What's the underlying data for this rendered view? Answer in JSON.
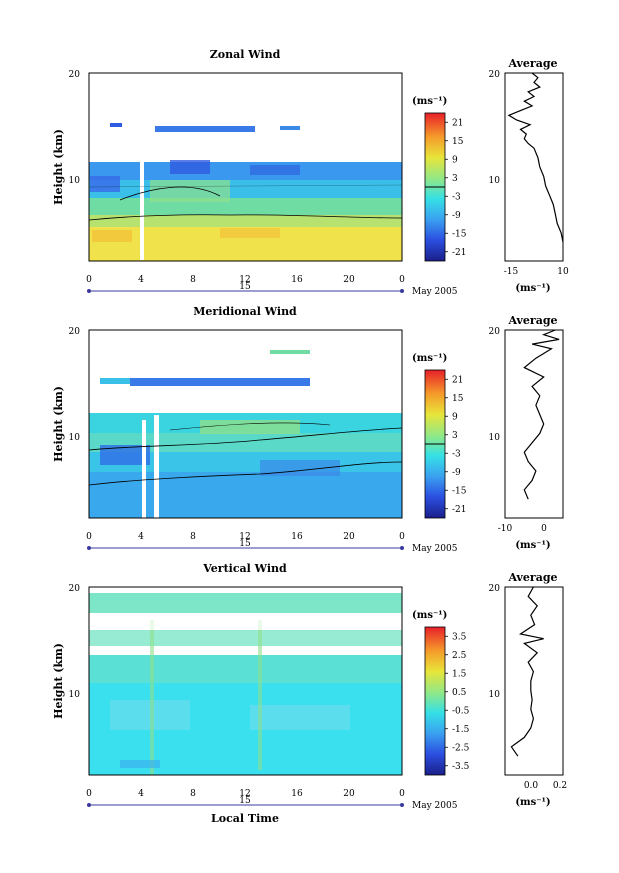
{
  "chart_data": [
    {
      "type": "heatmap",
      "title": "Zonal Wind",
      "ylabel": "Height (km)",
      "yticks": [
        10,
        20
      ],
      "xticks": [
        "0",
        "4",
        "8",
        "12",
        "16",
        "20",
        "0"
      ],
      "day_label": "15",
      "month_label": "May 2005",
      "colorbar": {
        "unit": "(ms⁻¹)",
        "ticks": [
          "21",
          "15",
          "9",
          "3",
          "-3",
          "-9",
          "-15",
          "-21"
        ],
        "range": [
          -24,
          24
        ]
      },
      "average": {
        "title": "Average",
        "xticks": [
          "-15",
          "10"
        ],
        "xlim": [
          -20,
          10
        ],
        "unit": "(ms⁻¹)",
        "profile": [
          [
            10,
            2
          ],
          [
            9,
            3
          ],
          [
            7,
            4
          ],
          [
            6,
            5
          ],
          [
            5,
            6
          ],
          [
            4,
            6.5
          ],
          [
            3,
            7
          ],
          [
            2,
            7.5
          ],
          [
            1,
            8
          ],
          [
            0,
            9
          ],
          [
            -2,
            10
          ],
          [
            -3,
            11
          ],
          [
            -5,
            12
          ],
          [
            -8,
            12.5
          ],
          [
            -10,
            13
          ],
          [
            -9,
            13.5
          ],
          [
            -12,
            14
          ],
          [
            -7,
            14.5
          ],
          [
            -14,
            15
          ],
          [
            -18,
            15.5
          ],
          [
            -12,
            16
          ],
          [
            -6,
            16.5
          ],
          [
            -10,
            17
          ],
          [
            -5,
            17.5
          ],
          [
            -8,
            18
          ],
          [
            -2,
            18.5
          ],
          [
            -5,
            19
          ],
          [
            -3,
            19.5
          ],
          [
            -6,
            20
          ]
        ]
      }
    },
    {
      "type": "heatmap",
      "title": "Meridional Wind",
      "ylabel": "Height (km)",
      "yticks": [
        10,
        20
      ],
      "xticks": [
        "0",
        "4",
        "8",
        "12",
        "16",
        "20",
        "0"
      ],
      "day_label": "15",
      "month_label": "May 2005",
      "colorbar": {
        "unit": "(ms⁻¹)",
        "ticks": [
          "21",
          "15",
          "9",
          "3",
          "-3",
          "-9",
          "-15",
          "-21"
        ],
        "range": [
          -24,
          24
        ]
      },
      "average": {
        "title": "Average",
        "xticks": [
          "-10",
          "0"
        ],
        "xlim": [
          -10,
          5
        ],
        "unit": "(ms⁻¹)",
        "profile": [
          [
            -4,
            2
          ],
          [
            -5,
            3
          ],
          [
            -3,
            4
          ],
          [
            -2,
            5
          ],
          [
            -4,
            6
          ],
          [
            -5,
            7
          ],
          [
            -3,
            8
          ],
          [
            -1,
            9
          ],
          [
            0,
            10
          ],
          [
            -1,
            11
          ],
          [
            -2,
            12
          ],
          [
            -1,
            13
          ],
          [
            -3,
            14
          ],
          [
            0,
            15
          ],
          [
            -5,
            16
          ],
          [
            -2,
            17
          ],
          [
            2,
            18
          ],
          [
            -3,
            18.5
          ],
          [
            4,
            19
          ],
          [
            0,
            19.5
          ],
          [
            3,
            20
          ]
        ]
      }
    },
    {
      "type": "heatmap",
      "title": "Vertical Wind",
      "ylabel": "Height (km)",
      "xlabel": "Local Time",
      "yticks": [
        10,
        20
      ],
      "xticks": [
        "0",
        "4",
        "8",
        "12",
        "16",
        "20",
        "0"
      ],
      "day_label": "15",
      "month_label": "May 2005",
      "colorbar": {
        "unit": "(ms⁻¹)",
        "ticks": [
          "3.5",
          "2.5",
          "1.5",
          "0.5",
          "-0.5",
          "-1.5",
          "-2.5",
          "-3.5"
        ],
        "range": [
          -4,
          4
        ]
      },
      "average": {
        "title": "Average",
        "xticks": [
          "0.0",
          "0.2"
        ],
        "xlim": [
          -0.2,
          0.25
        ],
        "unit": "(ms⁻¹)",
        "profile": [
          [
            -0.1,
            2
          ],
          [
            -0.15,
            3
          ],
          [
            -0.05,
            4
          ],
          [
            0,
            5
          ],
          [
            0.02,
            6
          ],
          [
            0,
            7
          ],
          [
            0.01,
            8
          ],
          [
            0,
            9
          ],
          [
            0,
            10
          ],
          [
            0.02,
            11
          ],
          [
            -0.02,
            12
          ],
          [
            0.05,
            13
          ],
          [
            -0.05,
            14
          ],
          [
            0.1,
            14.5
          ],
          [
            -0.08,
            15
          ],
          [
            0.03,
            16
          ],
          [
            0,
            17
          ],
          [
            0.05,
            18
          ],
          [
            -0.02,
            19
          ],
          [
            0.02,
            20
          ]
        ]
      }
    }
  ]
}
